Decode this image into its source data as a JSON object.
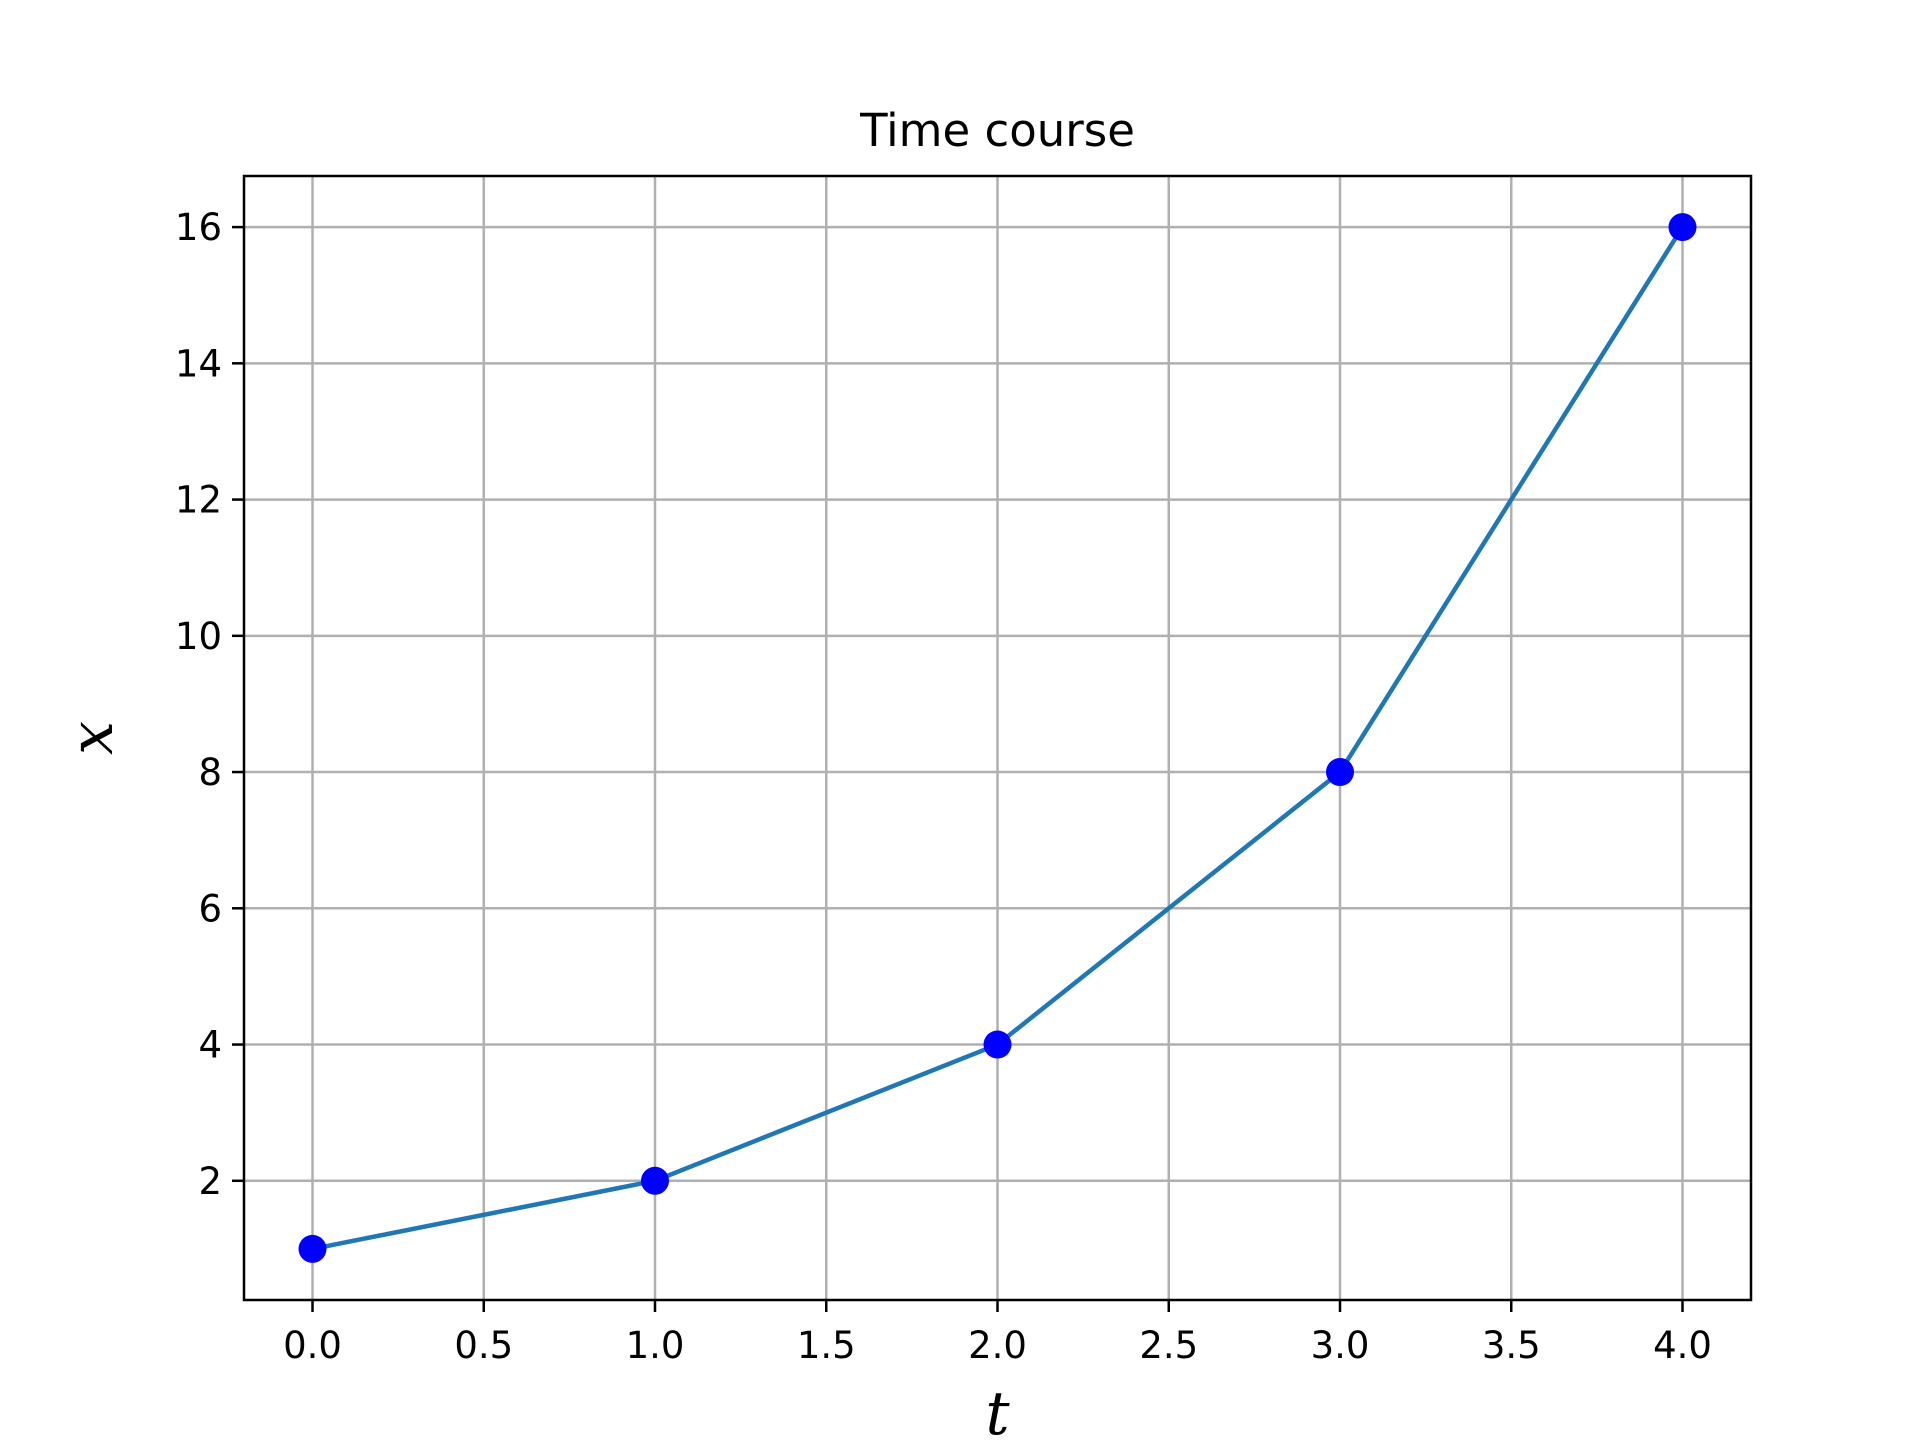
{
  "chart_data": {
    "type": "line",
    "title": "Time course",
    "xlabel": "t",
    "ylabel": "x",
    "x": [
      0.0,
      1.0,
      2.0,
      3.0,
      4.0
    ],
    "series": [
      {
        "values": [
          1,
          2,
          4,
          8,
          16
        ],
        "line_color": "#1f77b4",
        "marker_color": "#0000ff",
        "marker": "circle"
      }
    ],
    "xlim": [
      -0.2,
      4.2
    ],
    "ylim": [
      0.25,
      16.75
    ],
    "xticks": [
      0.0,
      0.5,
      1.0,
      1.5,
      2.0,
      2.5,
      3.0,
      3.5,
      4.0
    ],
    "xtick_labels": [
      "0.0",
      "0.5",
      "1.0",
      "1.5",
      "2.0",
      "2.5",
      "3.0",
      "3.5",
      "4.0"
    ],
    "yticks": [
      2,
      4,
      6,
      8,
      10,
      12,
      14,
      16
    ],
    "ytick_labels": [
      "2",
      "4",
      "6",
      "8",
      "10",
      "12",
      "14",
      "16"
    ],
    "grid": true,
    "grid_color": "#b0b0b0"
  }
}
